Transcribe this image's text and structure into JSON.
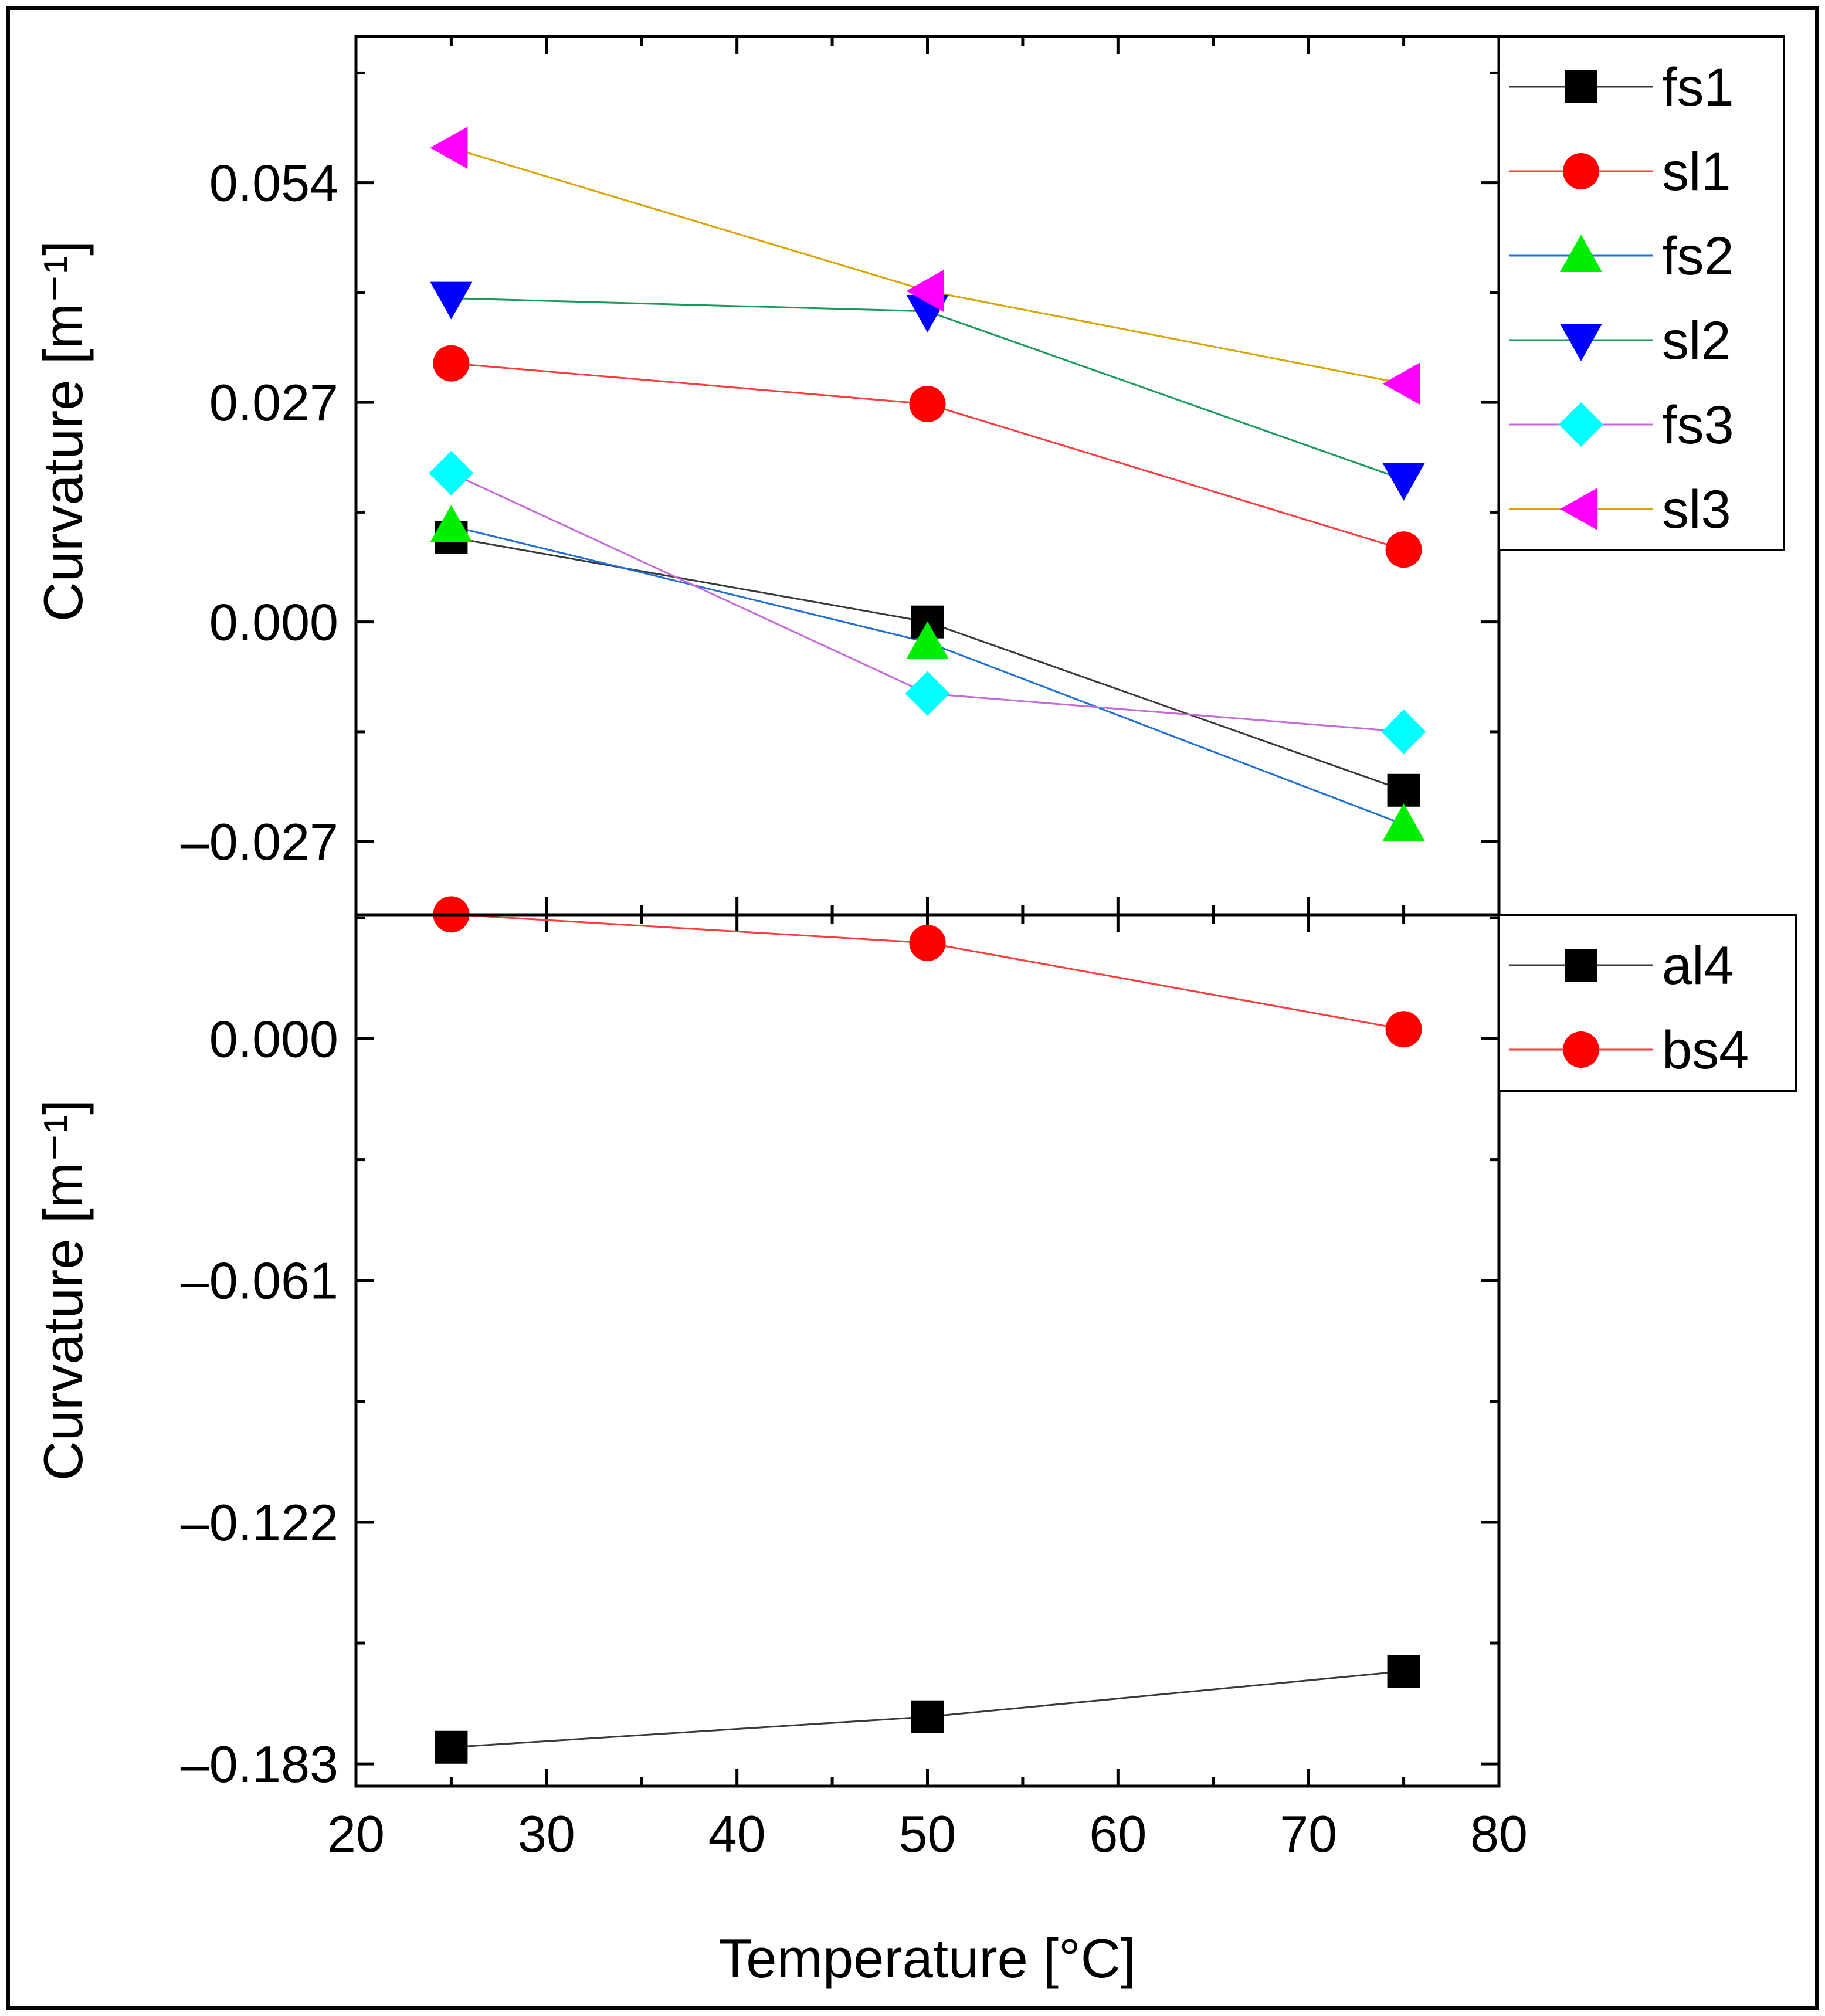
{
  "chart_data": [
    {
      "type": "line",
      "xlabel": "",
      "ylabel": "Curvature [m⁻¹]",
      "xlim": [
        20,
        80
      ],
      "ylim": [
        -0.036,
        0.072
      ],
      "yticks": [
        "0.054",
        "0.027",
        "0.000",
        "–0.027"
      ],
      "ytick_values": [
        0.054,
        0.027,
        0.0,
        -0.027
      ],
      "x": [
        25,
        50,
        75
      ],
      "legend_position": "top-right",
      "series": [
        {
          "name": "fs1",
          "marker": "square",
          "marker_color": "#000000",
          "line_color": "#3a3a3a",
          "values": [
            0.0104,
            0.0,
            -0.0207
          ]
        },
        {
          "name": "sl1",
          "marker": "circle",
          "marker_color": "#ff0000",
          "line_color": "#ff3b3b",
          "values": [
            0.0318,
            0.0268,
            0.0089
          ]
        },
        {
          "name": "fs2",
          "marker": "triangle-up",
          "marker_color": "#00ee00",
          "line_color": "#1f6fd6",
          "values": [
            0.0118,
            -0.0025,
            -0.0249
          ]
        },
        {
          "name": "sl2",
          "marker": "triangle-down",
          "marker_color": "#0000ff",
          "line_color": "#1a9a5a",
          "values": [
            0.0398,
            0.0382,
            0.0175
          ]
        },
        {
          "name": "fs3",
          "marker": "diamond",
          "marker_color": "#00ffff",
          "line_color": "#c46bd8",
          "values": [
            0.0183,
            -0.0088,
            -0.0135
          ]
        },
        {
          "name": "sl3",
          "marker": "triangle-left",
          "marker_color": "#ff00ff",
          "line_color": "#d9a300",
          "values": [
            0.0583,
            0.0407,
            0.0293
          ]
        }
      ]
    },
    {
      "type": "line",
      "xlabel": "Temperature [°C]",
      "ylabel": "Curvature [m⁻¹]",
      "xlim": [
        20,
        80
      ],
      "ylim": [
        -0.1886,
        0.0313
      ],
      "xticks": [
        "20",
        "30",
        "40",
        "50",
        "60",
        "70",
        "80"
      ],
      "xtick_values": [
        20,
        30,
        40,
        50,
        60,
        70,
        80
      ],
      "yticks": [
        "0.000",
        "–0.061",
        "–0.122",
        "–0.183"
      ],
      "ytick_values": [
        0.0,
        -0.061,
        -0.122,
        -0.183
      ],
      "x": [
        25,
        50,
        75
      ],
      "legend_position": "top-right",
      "series": [
        {
          "name": "al4",
          "marker": "square",
          "marker_color": "#000000",
          "line_color": "#3a3a3a",
          "values": [
            -0.1788,
            -0.1711,
            -0.1596
          ]
        },
        {
          "name": "bs4",
          "marker": "circle",
          "marker_color": "#ff0000",
          "line_color": "#ff3b3b",
          "values": [
            0.0314,
            0.0242,
            0.0024
          ]
        }
      ]
    }
  ]
}
